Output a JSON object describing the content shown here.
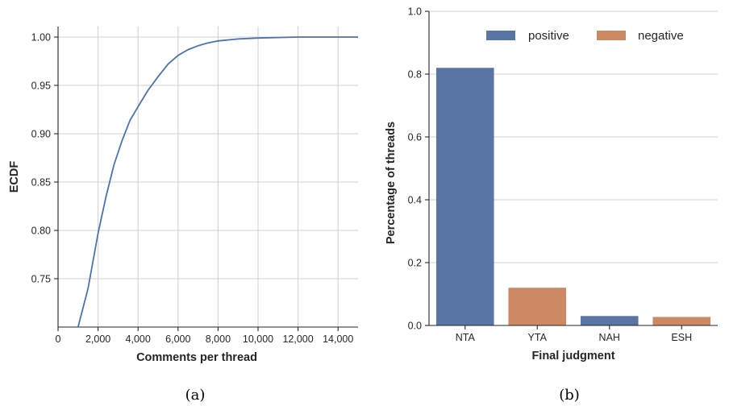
{
  "captions": {
    "a": "(a)",
    "b": "(b)"
  },
  "chart_data": [
    {
      "type": "line",
      "title": "",
      "xlabel": "Comments per thread",
      "ylabel": "ECDF",
      "xlim": [
        0,
        15000
      ],
      "ylim": [
        0.7,
        1.01
      ],
      "xticks": [
        0,
        2000,
        4000,
        6000,
        8000,
        10000,
        12000,
        14000
      ],
      "xtick_labels": [
        "0",
        "2,000",
        "4,000",
        "6,000",
        "8,000",
        "10,000",
        "12,000",
        "14,000"
      ],
      "yticks": [
        0.75,
        0.8,
        0.85,
        0.9,
        0.95,
        1.0
      ],
      "ytick_labels": [
        "0.75",
        "0.80",
        "0.85",
        "0.90",
        "0.95",
        "1.00"
      ],
      "grid": true,
      "series": [
        {
          "color": "#4c72b0",
          "x": [
            1000,
            1500,
            2000,
            2400,
            2800,
            3200,
            3600,
            4000,
            4500,
            5000,
            5500,
            6000,
            6500,
            7000,
            7500,
            8000,
            9000,
            10000,
            12000,
            15000
          ],
          "y": [
            0.7,
            0.74,
            0.797,
            0.835,
            0.868,
            0.893,
            0.914,
            0.928,
            0.945,
            0.959,
            0.972,
            0.981,
            0.987,
            0.991,
            0.994,
            0.996,
            0.998,
            0.999,
            1.0,
            1.0
          ]
        }
      ]
    },
    {
      "type": "bar",
      "title": "",
      "xlabel": "Final judgment",
      "ylabel": "Percentage of threads",
      "categories": [
        "NTA",
        "YTA",
        "NAH",
        "ESH"
      ],
      "values": [
        0.82,
        0.12,
        0.03,
        0.027
      ],
      "bar_colors": [
        "#5975a4",
        "#cc8963",
        "#5975a4",
        "#cc8963"
      ],
      "ylim": [
        0,
        1.0
      ],
      "yticks": [
        0,
        0.2,
        0.4,
        0.6,
        0.8,
        1.0
      ],
      "ytick_labels": [
        "0.0",
        "0.2",
        "0.4",
        "0.6",
        "0.8",
        "1.0"
      ],
      "grid": true,
      "legend_position": "top",
      "legend": [
        {
          "name": "positive",
          "color": "#5975a4"
        },
        {
          "name": "negative",
          "color": "#cc8963"
        }
      ]
    }
  ]
}
